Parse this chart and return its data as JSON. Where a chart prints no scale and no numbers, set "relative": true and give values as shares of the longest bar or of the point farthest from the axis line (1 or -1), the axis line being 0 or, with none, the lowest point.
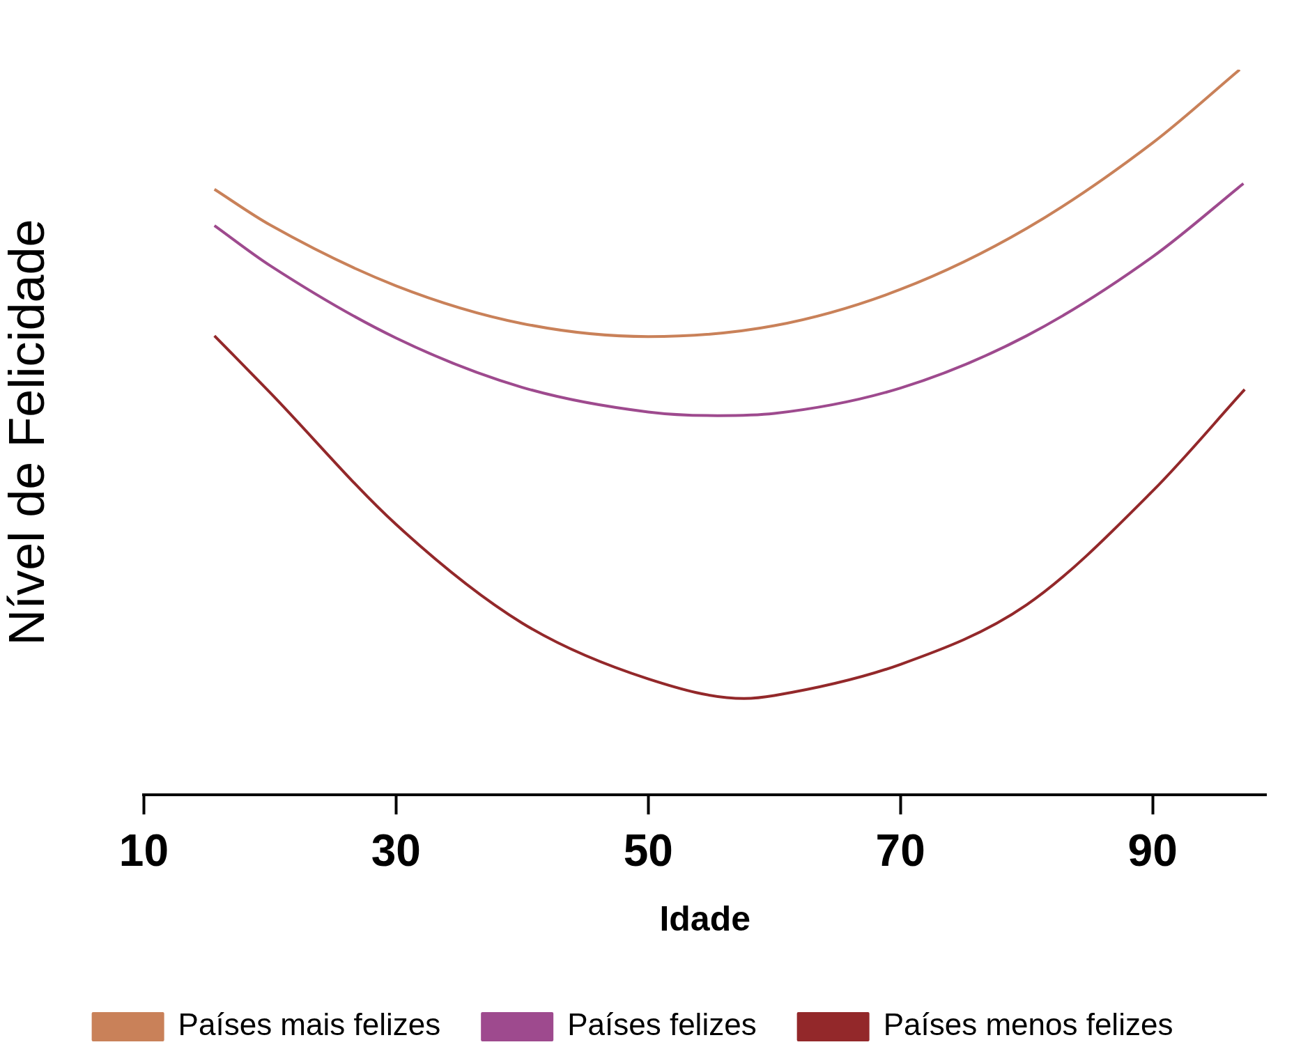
{
  "chart_data": {
    "type": "line",
    "relative": true,
    "xlabel": "Idade",
    "ylabel": "Nível de Felicidade",
    "xlim": [
      10,
      99
    ],
    "xticks": [
      10,
      30,
      50,
      70,
      90
    ],
    "grid": false,
    "legend": "bottom",
    "marker": "none",
    "line_style": "solid",
    "series": [
      {
        "name": "Países mais felizes",
        "color": "#c98159",
        "x": [
          15.6,
          20,
          30,
          40,
          50,
          60,
          70,
          80,
          90,
          96.9
        ],
        "values": [
          0.835,
          0.786,
          0.702,
          0.65,
          0.632,
          0.647,
          0.697,
          0.781,
          0.899,
          1
        ]
      },
      {
        "name": "Países felizes",
        "color": "#9e4a8e",
        "x": [
          15.6,
          20,
          30,
          40,
          50,
          55.5,
          60,
          70,
          80,
          90,
          97.2
        ],
        "values": [
          0.785,
          0.73,
          0.63,
          0.562,
          0.528,
          0.523,
          0.526,
          0.561,
          0.633,
          0.742,
          0.843
        ]
      },
      {
        "name": "Países menos felizes",
        "color": "#93282a",
        "x": [
          15.6,
          20,
          30,
          40,
          50,
          57.6,
          60,
          70,
          80,
          90,
          97.3
        ],
        "values": [
          0.633,
          0.555,
          0.373,
          0.237,
          0.16,
          0.133,
          0.137,
          0.18,
          0.262,
          0.419,
          0.559
        ]
      }
    ]
  }
}
